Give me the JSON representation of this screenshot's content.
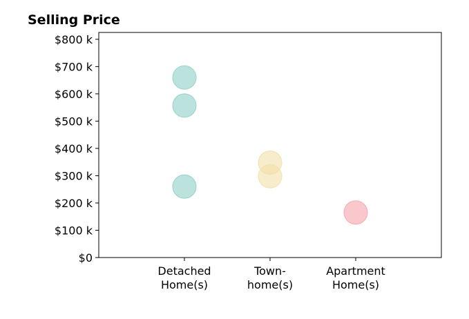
{
  "chart_data": {
    "type": "scatter",
    "title": "Selling Price",
    "xlabel": "",
    "ylabel": "",
    "categories": [
      [
        "Detached",
        "Home(s)"
      ],
      [
        "Town-",
        "home(s)"
      ],
      [
        "Apartment",
        "Home(s)"
      ]
    ],
    "ylim": [
      0,
      825000
    ],
    "yticks": [
      0,
      100000,
      200000,
      300000,
      400000,
      500000,
      600000,
      700000,
      800000
    ],
    "ytick_labels": [
      "$0",
      "$100 k",
      "$200 k",
      "$300 k",
      "$400 k",
      "$500 k",
      "$600 k",
      "$700 k",
      "$800 k"
    ],
    "grid": false,
    "legend": "none",
    "series": [
      {
        "category_index": 0,
        "color": "#8ecfc6",
        "values": [
          660000,
          557000,
          260000
        ]
      },
      {
        "category_index": 1,
        "color": "#f2dfa8",
        "values": [
          348000,
          298000
        ]
      },
      {
        "category_index": 2,
        "color": "#f4a3aa",
        "values": [
          165000
        ]
      }
    ]
  }
}
